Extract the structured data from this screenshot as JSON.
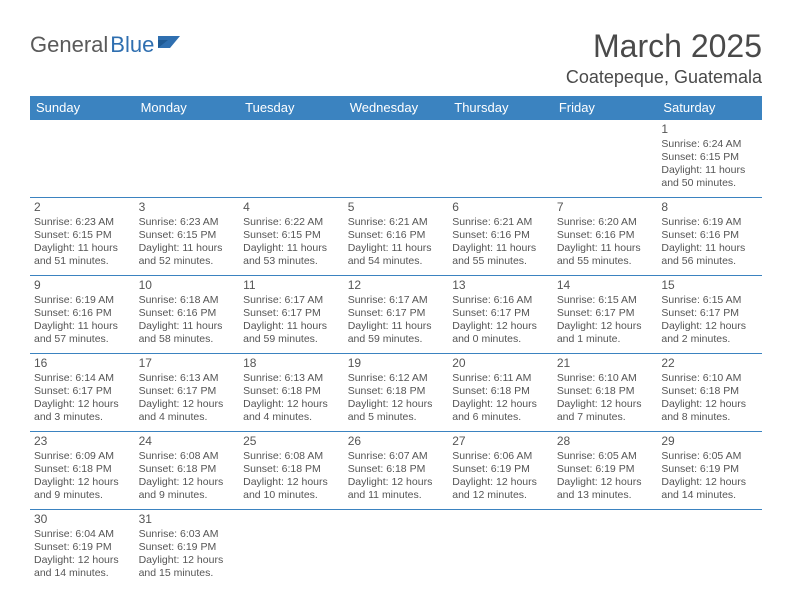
{
  "logo": {
    "part1": "General",
    "part2": "Blue"
  },
  "title": "March 2025",
  "location": "Coatepeque, Guatemala",
  "colors": {
    "header_bg": "#3b83c0",
    "header_text": "#ffffff",
    "cell_border": "#3b83c0",
    "body_text": "#555555",
    "logo_blue": "#2f6fb0",
    "logo_gray": "#5a5a5a",
    "page_bg": "#ffffff"
  },
  "weekdays": [
    "Sunday",
    "Monday",
    "Tuesday",
    "Wednesday",
    "Thursday",
    "Friday",
    "Saturday"
  ],
  "weeks": [
    [
      null,
      null,
      null,
      null,
      null,
      null,
      {
        "n": "1",
        "sr": "Sunrise: 6:24 AM",
        "ss": "Sunset: 6:15 PM",
        "dl": "Daylight: 11 hours and 50 minutes."
      }
    ],
    [
      {
        "n": "2",
        "sr": "Sunrise: 6:23 AM",
        "ss": "Sunset: 6:15 PM",
        "dl": "Daylight: 11 hours and 51 minutes."
      },
      {
        "n": "3",
        "sr": "Sunrise: 6:23 AM",
        "ss": "Sunset: 6:15 PM",
        "dl": "Daylight: 11 hours and 52 minutes."
      },
      {
        "n": "4",
        "sr": "Sunrise: 6:22 AM",
        "ss": "Sunset: 6:15 PM",
        "dl": "Daylight: 11 hours and 53 minutes."
      },
      {
        "n": "5",
        "sr": "Sunrise: 6:21 AM",
        "ss": "Sunset: 6:16 PM",
        "dl": "Daylight: 11 hours and 54 minutes."
      },
      {
        "n": "6",
        "sr": "Sunrise: 6:21 AM",
        "ss": "Sunset: 6:16 PM",
        "dl": "Daylight: 11 hours and 55 minutes."
      },
      {
        "n": "7",
        "sr": "Sunrise: 6:20 AM",
        "ss": "Sunset: 6:16 PM",
        "dl": "Daylight: 11 hours and 55 minutes."
      },
      {
        "n": "8",
        "sr": "Sunrise: 6:19 AM",
        "ss": "Sunset: 6:16 PM",
        "dl": "Daylight: 11 hours and 56 minutes."
      }
    ],
    [
      {
        "n": "9",
        "sr": "Sunrise: 6:19 AM",
        "ss": "Sunset: 6:16 PM",
        "dl": "Daylight: 11 hours and 57 minutes."
      },
      {
        "n": "10",
        "sr": "Sunrise: 6:18 AM",
        "ss": "Sunset: 6:16 PM",
        "dl": "Daylight: 11 hours and 58 minutes."
      },
      {
        "n": "11",
        "sr": "Sunrise: 6:17 AM",
        "ss": "Sunset: 6:17 PM",
        "dl": "Daylight: 11 hours and 59 minutes."
      },
      {
        "n": "12",
        "sr": "Sunrise: 6:17 AM",
        "ss": "Sunset: 6:17 PM",
        "dl": "Daylight: 11 hours and 59 minutes."
      },
      {
        "n": "13",
        "sr": "Sunrise: 6:16 AM",
        "ss": "Sunset: 6:17 PM",
        "dl": "Daylight: 12 hours and 0 minutes."
      },
      {
        "n": "14",
        "sr": "Sunrise: 6:15 AM",
        "ss": "Sunset: 6:17 PM",
        "dl": "Daylight: 12 hours and 1 minute."
      },
      {
        "n": "15",
        "sr": "Sunrise: 6:15 AM",
        "ss": "Sunset: 6:17 PM",
        "dl": "Daylight: 12 hours and 2 minutes."
      }
    ],
    [
      {
        "n": "16",
        "sr": "Sunrise: 6:14 AM",
        "ss": "Sunset: 6:17 PM",
        "dl": "Daylight: 12 hours and 3 minutes."
      },
      {
        "n": "17",
        "sr": "Sunrise: 6:13 AM",
        "ss": "Sunset: 6:17 PM",
        "dl": "Daylight: 12 hours and 4 minutes."
      },
      {
        "n": "18",
        "sr": "Sunrise: 6:13 AM",
        "ss": "Sunset: 6:18 PM",
        "dl": "Daylight: 12 hours and 4 minutes."
      },
      {
        "n": "19",
        "sr": "Sunrise: 6:12 AM",
        "ss": "Sunset: 6:18 PM",
        "dl": "Daylight: 12 hours and 5 minutes."
      },
      {
        "n": "20",
        "sr": "Sunrise: 6:11 AM",
        "ss": "Sunset: 6:18 PM",
        "dl": "Daylight: 12 hours and 6 minutes."
      },
      {
        "n": "21",
        "sr": "Sunrise: 6:10 AM",
        "ss": "Sunset: 6:18 PM",
        "dl": "Daylight: 12 hours and 7 minutes."
      },
      {
        "n": "22",
        "sr": "Sunrise: 6:10 AM",
        "ss": "Sunset: 6:18 PM",
        "dl": "Daylight: 12 hours and 8 minutes."
      }
    ],
    [
      {
        "n": "23",
        "sr": "Sunrise: 6:09 AM",
        "ss": "Sunset: 6:18 PM",
        "dl": "Daylight: 12 hours and 9 minutes."
      },
      {
        "n": "24",
        "sr": "Sunrise: 6:08 AM",
        "ss": "Sunset: 6:18 PM",
        "dl": "Daylight: 12 hours and 9 minutes."
      },
      {
        "n": "25",
        "sr": "Sunrise: 6:08 AM",
        "ss": "Sunset: 6:18 PM",
        "dl": "Daylight: 12 hours and 10 minutes."
      },
      {
        "n": "26",
        "sr": "Sunrise: 6:07 AM",
        "ss": "Sunset: 6:18 PM",
        "dl": "Daylight: 12 hours and 11 minutes."
      },
      {
        "n": "27",
        "sr": "Sunrise: 6:06 AM",
        "ss": "Sunset: 6:19 PM",
        "dl": "Daylight: 12 hours and 12 minutes."
      },
      {
        "n": "28",
        "sr": "Sunrise: 6:05 AM",
        "ss": "Sunset: 6:19 PM",
        "dl": "Daylight: 12 hours and 13 minutes."
      },
      {
        "n": "29",
        "sr": "Sunrise: 6:05 AM",
        "ss": "Sunset: 6:19 PM",
        "dl": "Daylight: 12 hours and 14 minutes."
      }
    ],
    [
      {
        "n": "30",
        "sr": "Sunrise: 6:04 AM",
        "ss": "Sunset: 6:19 PM",
        "dl": "Daylight: 12 hours and 14 minutes."
      },
      {
        "n": "31",
        "sr": "Sunrise: 6:03 AM",
        "ss": "Sunset: 6:19 PM",
        "dl": "Daylight: 12 hours and 15 minutes."
      },
      null,
      null,
      null,
      null,
      null
    ]
  ]
}
